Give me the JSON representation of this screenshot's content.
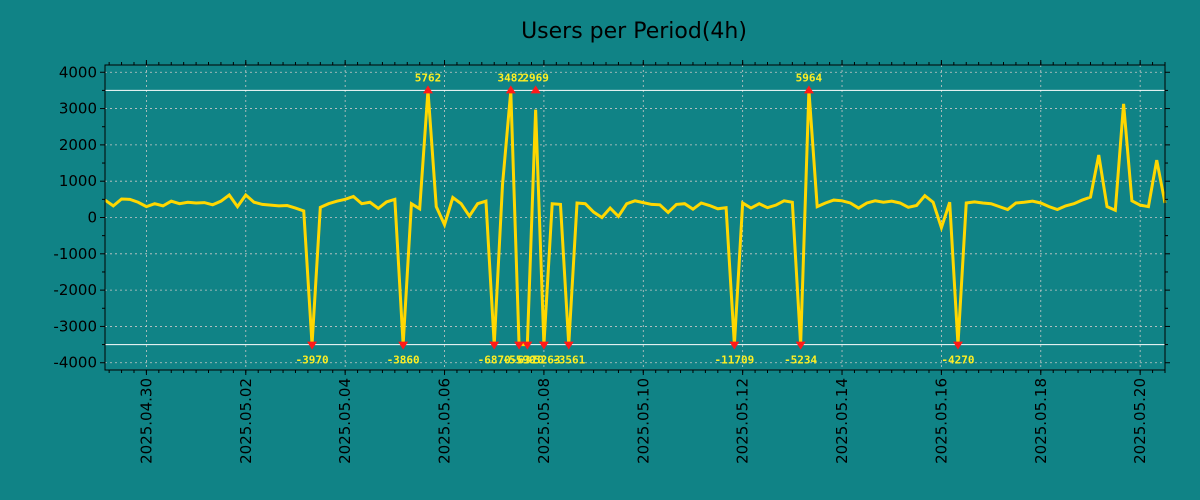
{
  "chart_data": {
    "type": "line",
    "title": "Users per Period(4h)",
    "xlabel": "",
    "ylabel": "",
    "x_range": [
      "2025-04-29T04:00",
      "2025-05-20T12:00"
    ],
    "ylim": [
      -4200,
      4200
    ],
    "y_ticks": [
      4000,
      3000,
      2000,
      1000,
      0,
      -1000,
      -2000,
      -3000,
      -4000
    ],
    "x_ticks": [
      "2025.04.30",
      "2025.05.02",
      "2025.05.04",
      "2025.05.06",
      "2025.05.08",
      "2025.05.10",
      "2025.05.12",
      "2025.05.14",
      "2025.05.16",
      "2025.05.18",
      "2025.05.20"
    ],
    "grid": true,
    "legend": "none",
    "clip_lines": [
      3500,
      -3500
    ],
    "colors": {
      "background": "#108386",
      "plot_background": "#108386",
      "line": "#ffd700",
      "marker": "#ff1a1a",
      "peak_label": "#ffee22",
      "threshold_line": "#ffffff"
    },
    "series": [
      {
        "points": [
          [
            "2025-04-29T04:00",
            480
          ],
          [
            "2025-04-29T08:00",
            320
          ],
          [
            "2025-04-29T12:00",
            510
          ],
          [
            "2025-04-29T16:00",
            500
          ],
          [
            "2025-04-29T20:00",
            420
          ],
          [
            "2025-04-30T00:00",
            300
          ],
          [
            "2025-04-30T04:00",
            380
          ],
          [
            "2025-04-30T08:00",
            320
          ],
          [
            "2025-04-30T12:00",
            450
          ],
          [
            "2025-04-30T16:00",
            380
          ],
          [
            "2025-04-30T20:00",
            420
          ],
          [
            "2025-05-01T00:00",
            400
          ],
          [
            "2025-05-01T04:00",
            410
          ],
          [
            "2025-05-01T08:00",
            350
          ],
          [
            "2025-05-01T12:00",
            450
          ],
          [
            "2025-05-01T16:00",
            620
          ],
          [
            "2025-05-01T20:00",
            300
          ],
          [
            "2025-05-02T00:00",
            620
          ],
          [
            "2025-05-02T04:00",
            420
          ],
          [
            "2025-05-02T08:00",
            360
          ],
          [
            "2025-05-02T12:00",
            340
          ],
          [
            "2025-05-02T16:00",
            320
          ],
          [
            "2025-05-02T20:00",
            330
          ],
          [
            "2025-05-03T00:00",
            260
          ],
          [
            "2025-05-03T04:00",
            180
          ],
          [
            "2025-05-03T08:00",
            -3970
          ],
          [
            "2025-05-03T12:00",
            280
          ],
          [
            "2025-05-03T16:00",
            380
          ],
          [
            "2025-05-03T20:00",
            450
          ],
          [
            "2025-05-04T00:00",
            500
          ],
          [
            "2025-05-04T04:00",
            580
          ],
          [
            "2025-05-04T08:00",
            380
          ],
          [
            "2025-05-04T12:00",
            420
          ],
          [
            "2025-05-04T16:00",
            250
          ],
          [
            "2025-05-04T20:00",
            430
          ],
          [
            "2025-05-05T00:00",
            500
          ],
          [
            "2025-05-05T04:00",
            -3860
          ],
          [
            "2025-05-05T08:00",
            380
          ],
          [
            "2025-05-05T12:00",
            240
          ],
          [
            "2025-05-05T16:00",
            5762
          ],
          [
            "2025-05-05T20:00",
            300
          ],
          [
            "2025-05-06T00:00",
            -200
          ],
          [
            "2025-05-06T04:00",
            550
          ],
          [
            "2025-05-06T08:00",
            380
          ],
          [
            "2025-05-06T12:00",
            40
          ],
          [
            "2025-05-06T16:00",
            380
          ],
          [
            "2025-05-06T20:00",
            450
          ],
          [
            "2025-05-07T00:00",
            -6870
          ],
          [
            "2025-05-07T04:00",
            900
          ],
          [
            "2025-05-07T08:00",
            3482
          ],
          [
            "2025-05-07T12:00",
            -5590
          ],
          [
            "2025-05-07T16:00",
            -6310
          ],
          [
            "2025-05-07T20:00",
            2969
          ],
          [
            "2025-05-08T00:00",
            -5263
          ],
          [
            "2025-05-08T04:00",
            380
          ],
          [
            "2025-05-08T08:00",
            360
          ],
          [
            "2025-05-08T12:00",
            -3561
          ],
          [
            "2025-05-08T16:00",
            400
          ],
          [
            "2025-05-08T20:00",
            380
          ],
          [
            "2025-05-09T00:00",
            150
          ],
          [
            "2025-05-09T04:00",
            0
          ],
          [
            "2025-05-09T08:00",
            260
          ],
          [
            "2025-05-09T12:00",
            30
          ],
          [
            "2025-05-09T16:00",
            380
          ],
          [
            "2025-05-09T20:00",
            460
          ],
          [
            "2025-05-10T00:00",
            410
          ],
          [
            "2025-05-10T04:00",
            360
          ],
          [
            "2025-05-10T08:00",
            350
          ],
          [
            "2025-05-10T12:00",
            140
          ],
          [
            "2025-05-10T16:00",
            360
          ],
          [
            "2025-05-10T20:00",
            380
          ],
          [
            "2025-05-11T00:00",
            230
          ],
          [
            "2025-05-11T04:00",
            400
          ],
          [
            "2025-05-11T08:00",
            330
          ],
          [
            "2025-05-11T12:00",
            240
          ],
          [
            "2025-05-11T16:00",
            270
          ],
          [
            "2025-05-11T20:00",
            -11709
          ],
          [
            "2025-05-12T00:00",
            400
          ],
          [
            "2025-05-12T04:00",
            260
          ],
          [
            "2025-05-12T08:00",
            380
          ],
          [
            "2025-05-12T12:00",
            270
          ],
          [
            "2025-05-12T16:00",
            340
          ],
          [
            "2025-05-12T20:00",
            460
          ],
          [
            "2025-05-13T00:00",
            420
          ],
          [
            "2025-05-13T04:00",
            -5234
          ],
          [
            "2025-05-13T08:00",
            5964
          ],
          [
            "2025-05-13T12:00",
            300
          ],
          [
            "2025-05-13T16:00",
            400
          ],
          [
            "2025-05-13T20:00",
            480
          ],
          [
            "2025-05-14T00:00",
            460
          ],
          [
            "2025-05-14T04:00",
            400
          ],
          [
            "2025-05-14T08:00",
            260
          ],
          [
            "2025-05-14T12:00",
            400
          ],
          [
            "2025-05-14T16:00",
            460
          ],
          [
            "2025-05-14T20:00",
            420
          ],
          [
            "2025-05-15T00:00",
            450
          ],
          [
            "2025-05-15T04:00",
            400
          ],
          [
            "2025-05-15T08:00",
            280
          ],
          [
            "2025-05-15T12:00",
            330
          ],
          [
            "2025-05-15T16:00",
            600
          ],
          [
            "2025-05-15T20:00",
            420
          ],
          [
            "2025-05-16T00:00",
            -280
          ],
          [
            "2025-05-16T04:00",
            420
          ],
          [
            "2025-05-16T08:00",
            -4270
          ],
          [
            "2025-05-16T12:00",
            400
          ],
          [
            "2025-05-16T16:00",
            430
          ],
          [
            "2025-05-16T20:00",
            400
          ],
          [
            "2025-05-17T00:00",
            380
          ],
          [
            "2025-05-17T04:00",
            300
          ],
          [
            "2025-05-17T08:00",
            220
          ],
          [
            "2025-05-17T12:00",
            400
          ],
          [
            "2025-05-17T16:00",
            420
          ],
          [
            "2025-05-17T20:00",
            450
          ],
          [
            "2025-05-18T00:00",
            400
          ],
          [
            "2025-05-18T04:00",
            300
          ],
          [
            "2025-05-18T08:00",
            220
          ],
          [
            "2025-05-18T12:00",
            320
          ],
          [
            "2025-05-18T16:00",
            380
          ],
          [
            "2025-05-18T20:00",
            480
          ],
          [
            "2025-05-19T00:00",
            560
          ],
          [
            "2025-05-19T04:00",
            1720
          ],
          [
            "2025-05-19T08:00",
            300
          ],
          [
            "2025-05-19T12:00",
            200
          ],
          [
            "2025-05-19T16:00",
            3130
          ],
          [
            "2025-05-19T20:00",
            460
          ],
          [
            "2025-05-20T00:00",
            340
          ],
          [
            "2025-05-20T04:00",
            300
          ],
          [
            "2025-05-20T08:00",
            1580
          ],
          [
            "2025-05-20T12:00",
            400
          ]
        ]
      }
    ],
    "peak_labels": [
      {
        "x": "2025-05-03T08:00",
        "value": "-3970",
        "dir": "down"
      },
      {
        "x": "2025-05-05T04:00",
        "value": "-3860",
        "dir": "down"
      },
      {
        "x": "2025-05-05T16:00",
        "value": "5762",
        "dir": "up"
      },
      {
        "x": "2025-05-07T00:00",
        "value": "-6870",
        "dir": "down"
      },
      {
        "x": "2025-05-07T08:00",
        "value": "3482",
        "dir": "up"
      },
      {
        "x": "2025-05-07T12:00",
        "value": "-5590",
        "dir": "down"
      },
      {
        "x": "2025-05-07T16:00",
        "value": "-6310",
        "dir": "down"
      },
      {
        "x": "2025-05-07T20:00",
        "value": "2969",
        "dir": "up"
      },
      {
        "x": "2025-05-08T00:00",
        "value": "-5263",
        "dir": "down"
      },
      {
        "x": "2025-05-08T12:00",
        "value": "-3561",
        "dir": "down"
      },
      {
        "x": "2025-05-11T20:00",
        "value": "-11709",
        "dir": "down"
      },
      {
        "x": "2025-05-13T04:00",
        "value": "-5234",
        "dir": "down"
      },
      {
        "x": "2025-05-13T08:00",
        "value": "5964",
        "dir": "up"
      },
      {
        "x": "2025-05-16T08:00",
        "value": "-4270",
        "dir": "down"
      }
    ]
  }
}
